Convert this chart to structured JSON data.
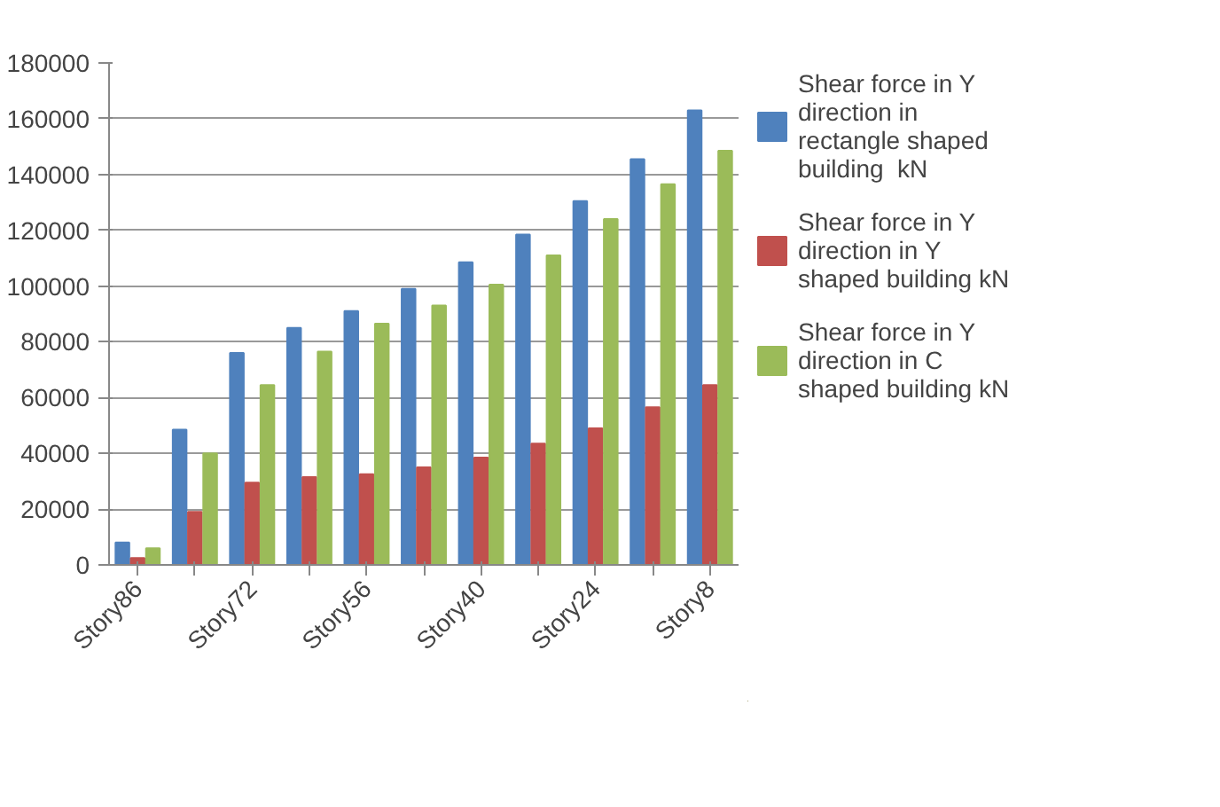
{
  "chart_data": {
    "type": "bar",
    "categories": [
      "Story86",
      null,
      "Story72",
      null,
      "Story56",
      null,
      "Story40",
      null,
      "Story24",
      null,
      "Story8"
    ],
    "series": [
      {
        "name": "Shear force in Y direction in rectangle shaped building  kN",
        "color": "#4f81bd",
        "values": [
          8000,
          48500,
          76000,
          85000,
          91000,
          99000,
          108500,
          118500,
          130500,
          145500,
          163000
        ]
      },
      {
        "name": "Shear force in Y direction in Y shaped building kN",
        "color": "#c0504d",
        "values": [
          2500,
          19000,
          29500,
          31500,
          32500,
          35000,
          38500,
          43500,
          49000,
          56500,
          64500
        ]
      },
      {
        "name": "Shear force in Y direction in C shaped building kN",
        "color": "#9bbb59",
        "values": [
          6000,
          40000,
          64500,
          76500,
          86500,
          93000,
          100500,
          111000,
          124000,
          136500,
          148500
        ]
      }
    ],
    "ylim": [
      0,
      180000
    ],
    "yticks": [
      0,
      20000,
      40000,
      60000,
      80000,
      100000,
      120000,
      140000,
      160000,
      180000
    ],
    "grid": "y",
    "legend": "right"
  }
}
